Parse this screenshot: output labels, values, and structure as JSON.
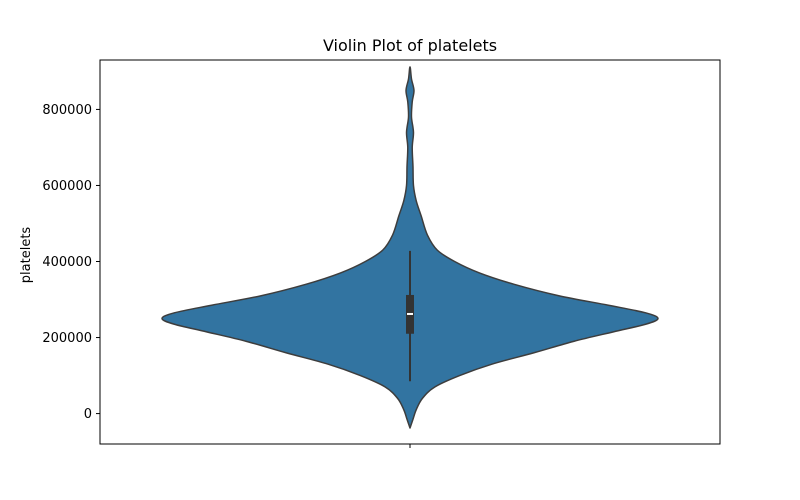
{
  "chart_data": {
    "type": "violin",
    "title": "Violin Plot of platelets",
    "xlabel": "",
    "ylabel": "platelets",
    "ylim": [
      -80000,
      930000
    ],
    "yticks": [
      0,
      200000,
      400000,
      600000,
      800000
    ],
    "ytick_labels": [
      "0",
      "200000",
      "400000",
      "600000",
      "800000"
    ],
    "grid": false,
    "legend": "none",
    "color": "#3274a1",
    "edge_color": "#3d3d3d",
    "box_color": "#333333",
    "median_color": "#ffffff",
    "stats": {
      "min": -38000,
      "whisker_low": 85000,
      "q1": 210000,
      "median": 262000,
      "q3": 312000,
      "whisker_high": 428000,
      "max": 912000
    },
    "density_profile": [
      {
        "y": -38000,
        "half_width": 0.0
      },
      {
        "y": -15000,
        "half_width": 0.012
      },
      {
        "y": 10000,
        "half_width": 0.025
      },
      {
        "y": 40000,
        "half_width": 0.05
      },
      {
        "y": 70000,
        "half_width": 0.1
      },
      {
        "y": 100000,
        "half_width": 0.2
      },
      {
        "y": 130000,
        "half_width": 0.33
      },
      {
        "y": 160000,
        "half_width": 0.5
      },
      {
        "y": 190000,
        "half_width": 0.66
      },
      {
        "y": 215000,
        "half_width": 0.82
      },
      {
        "y": 235000,
        "half_width": 0.95
      },
      {
        "y": 250000,
        "half_width": 1.0
      },
      {
        "y": 265000,
        "half_width": 0.95
      },
      {
        "y": 285000,
        "half_width": 0.8
      },
      {
        "y": 310000,
        "half_width": 0.6
      },
      {
        "y": 340000,
        "half_width": 0.42
      },
      {
        "y": 370000,
        "half_width": 0.28
      },
      {
        "y": 400000,
        "half_width": 0.18
      },
      {
        "y": 430000,
        "half_width": 0.11
      },
      {
        "y": 470000,
        "half_width": 0.07
      },
      {
        "y": 520000,
        "half_width": 0.045
      },
      {
        "y": 560000,
        "half_width": 0.025
      },
      {
        "y": 600000,
        "half_width": 0.014
      },
      {
        "y": 650000,
        "half_width": 0.012
      },
      {
        "y": 700000,
        "half_width": 0.009
      },
      {
        "y": 740000,
        "half_width": 0.014
      },
      {
        "y": 780000,
        "half_width": 0.006
      },
      {
        "y": 820000,
        "half_width": 0.009
      },
      {
        "y": 850000,
        "half_width": 0.016
      },
      {
        "y": 880000,
        "half_width": 0.006
      },
      {
        "y": 912000,
        "half_width": 0.0
      }
    ]
  }
}
